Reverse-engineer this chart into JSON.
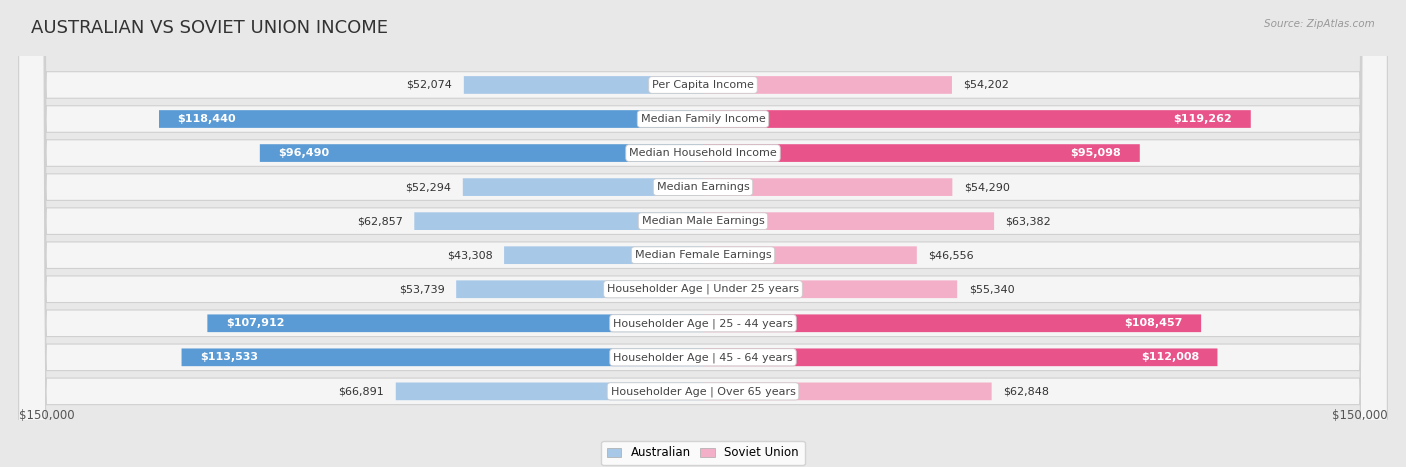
{
  "title": "AUSTRALIAN VS SOVIET UNION INCOME",
  "source": "Source: ZipAtlas.com",
  "categories": [
    "Per Capita Income",
    "Median Family Income",
    "Median Household Income",
    "Median Earnings",
    "Median Male Earnings",
    "Median Female Earnings",
    "Householder Age | Under 25 years",
    "Householder Age | 25 - 44 years",
    "Householder Age | 45 - 64 years",
    "Householder Age | Over 65 years"
  ],
  "australian_values": [
    52074,
    118440,
    96490,
    52294,
    62857,
    43308,
    53739,
    107912,
    113533,
    66891
  ],
  "soviet_values": [
    54202,
    119262,
    95098,
    54290,
    63382,
    46556,
    55340,
    108457,
    112008,
    62848
  ],
  "australian_labels": [
    "$52,074",
    "$118,440",
    "$96,490",
    "$52,294",
    "$62,857",
    "$43,308",
    "$53,739",
    "$107,912",
    "$113,533",
    "$66,891"
  ],
  "soviet_labels": [
    "$54,202",
    "$119,262",
    "$95,098",
    "$54,290",
    "$63,382",
    "$46,556",
    "$55,340",
    "$108,457",
    "$112,008",
    "$62,848"
  ],
  "max_value": 150000,
  "australian_color_low": "#a8c8e8",
  "australian_color_high": "#5b9bd5",
  "soviet_color_low": "#f4afc8",
  "soviet_color_high": "#e8538a",
  "background_color": "#e8e8e8",
  "row_bg_color": "#f5f5f5",
  "threshold": 90000,
  "title_fontsize": 13,
  "label_fontsize": 8,
  "category_fontsize": 8,
  "axis_label": "$150,000",
  "legend_australian": "Australian",
  "legend_soviet": "Soviet Union"
}
